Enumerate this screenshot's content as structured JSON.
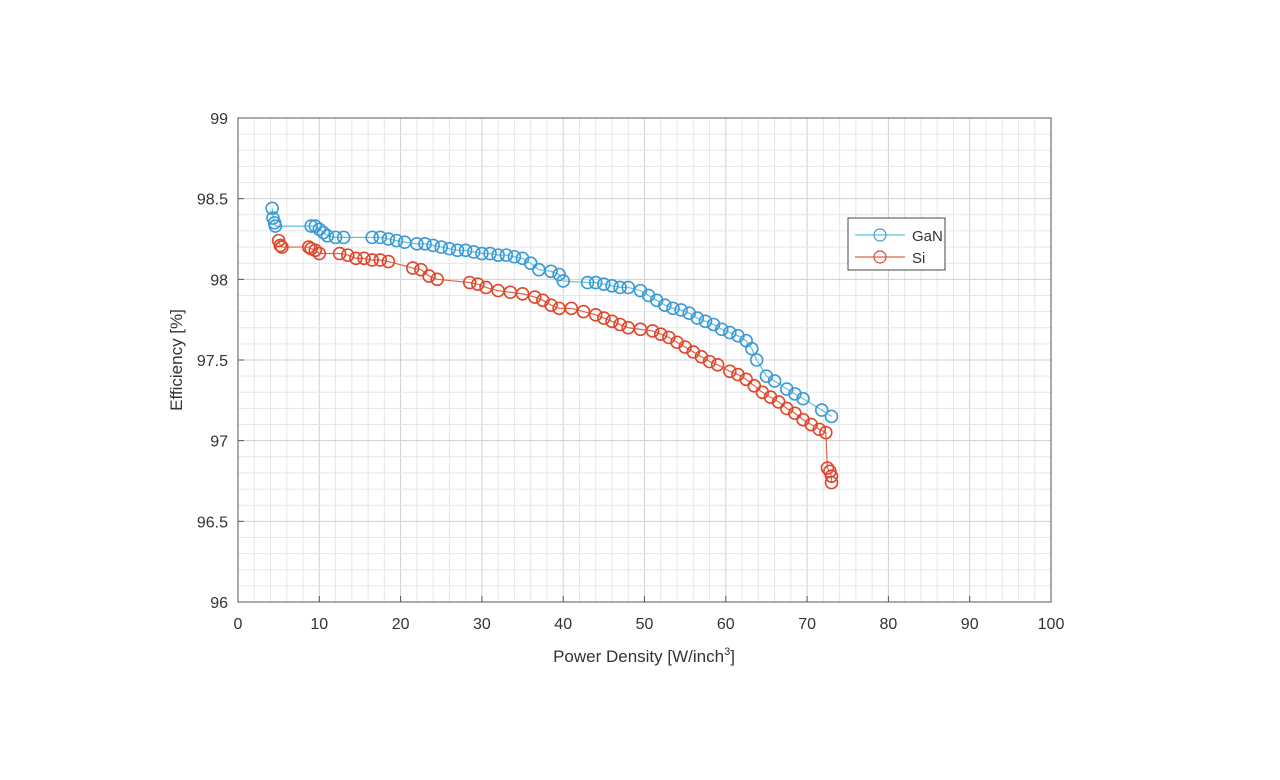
{
  "chart_data": {
    "type": "line",
    "title": "",
    "xlabel": "Power Density [W/inch",
    "xlabel_sup": "3",
    "xlabel_end": "]",
    "ylabel": "Efficiency [%]",
    "xlim": [
      0,
      100
    ],
    "ylim": [
      96,
      99
    ],
    "xticks": [
      "0",
      "10",
      "20",
      "30",
      "40",
      "50",
      "60",
      "70",
      "80",
      "90",
      "100"
    ],
    "yticks": [
      "96",
      "96.5",
      "97",
      "97.5",
      "98",
      "98.5",
      "99"
    ],
    "grid": "on (major and minor)",
    "legend_position": "top-right",
    "series": [
      {
        "name": "GaN",
        "color": "#3b9ad6",
        "line_color": "#5bc3dd",
        "x": [
          4.2,
          4.3,
          4.5,
          4.6,
          9,
          9.5,
          10,
          10.5,
          11,
          12,
          13,
          16.5,
          17.5,
          18.5,
          19.5,
          20.5,
          22,
          23,
          24,
          25,
          26,
          27,
          28,
          29,
          30,
          31,
          32,
          33,
          34,
          35,
          36,
          37,
          38.5,
          39.5,
          40,
          43,
          44,
          45,
          46,
          47,
          48,
          49.5,
          50.5,
          51.5,
          52.5,
          53.5,
          54.5,
          55.5,
          56.5,
          57.5,
          58.5,
          59.5,
          60.5,
          61.5,
          62.5,
          63.2,
          63.8,
          65,
          66,
          67.5,
          68.5,
          69.5,
          71.8,
          73
        ],
        "y": [
          98.44,
          98.38,
          98.35,
          98.33,
          98.33,
          98.33,
          98.31,
          98.29,
          98.27,
          98.26,
          98.26,
          98.26,
          98.26,
          98.25,
          98.24,
          98.23,
          98.22,
          98.22,
          98.21,
          98.2,
          98.19,
          98.18,
          98.18,
          98.17,
          98.16,
          98.16,
          98.15,
          98.15,
          98.14,
          98.13,
          98.1,
          98.06,
          98.05,
          98.03,
          97.99,
          97.98,
          97.98,
          97.97,
          97.96,
          97.95,
          97.95,
          97.93,
          97.9,
          97.87,
          97.84,
          97.82,
          97.81,
          97.79,
          97.76,
          97.74,
          97.72,
          97.69,
          97.67,
          97.65,
          97.62,
          97.57,
          97.5,
          97.4,
          97.37,
          97.32,
          97.29,
          97.26,
          97.19,
          97.15
        ]
      },
      {
        "name": "Si",
        "color": "#e0462a",
        "line_color": "#d9654a",
        "x": [
          5,
          5.2,
          5.4,
          8.7,
          9,
          9.5,
          10,
          12.5,
          13.5,
          14.5,
          15.5,
          16.5,
          17.5,
          18.5,
          21.5,
          22.5,
          23.5,
          24.5,
          28.5,
          29.5,
          30.5,
          32,
          33.5,
          35,
          36.5,
          37.5,
          38.5,
          39.5,
          41,
          42.5,
          44,
          45,
          46,
          47,
          48,
          49.5,
          51,
          52,
          53,
          54,
          55,
          56,
          57,
          58,
          59,
          60.5,
          61.5,
          62.5,
          63.5,
          64.5,
          65.5,
          66.5,
          67.5,
          68.5,
          69.5,
          70.5,
          71.5,
          72.3,
          72.5,
          72.8,
          73,
          73
        ],
        "y": [
          98.24,
          98.21,
          98.2,
          98.2,
          98.19,
          98.18,
          98.16,
          98.16,
          98.15,
          98.13,
          98.13,
          98.12,
          98.12,
          98.11,
          98.07,
          98.06,
          98.02,
          98,
          97.98,
          97.97,
          97.95,
          97.93,
          97.92,
          97.91,
          97.89,
          97.87,
          97.84,
          97.82,
          97.82,
          97.8,
          97.78,
          97.76,
          97.74,
          97.72,
          97.7,
          97.69,
          97.68,
          97.66,
          97.64,
          97.61,
          97.58,
          97.55,
          97.52,
          97.49,
          97.47,
          97.43,
          97.41,
          97.38,
          97.34,
          97.3,
          97.27,
          97.24,
          97.2,
          97.17,
          97.13,
          97.1,
          97.07,
          97.05,
          96.83,
          96.81,
          96.78,
          96.74
        ]
      }
    ]
  }
}
